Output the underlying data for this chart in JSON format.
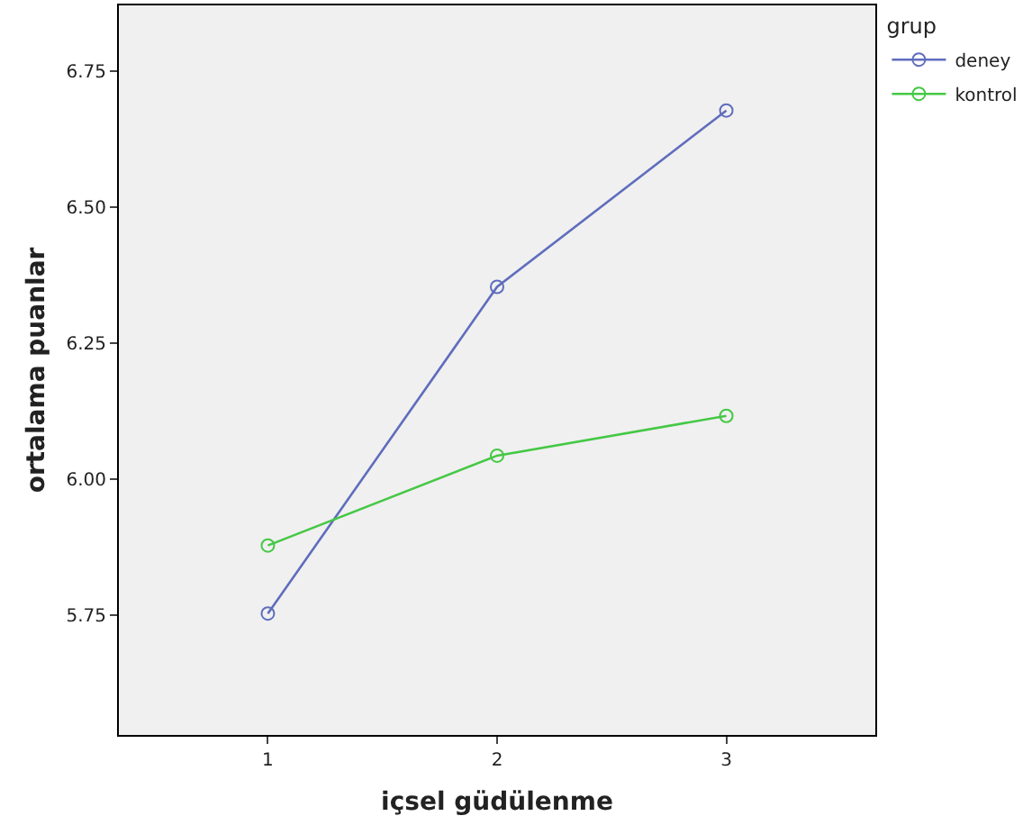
{
  "chart_data": {
    "type": "line",
    "xlabel": "içsel güdülenme",
    "ylabel": "ortalama puanlar",
    "legend_title": "grup",
    "x": [
      1,
      2,
      3
    ],
    "xlim": [
      0.35,
      3.65
    ],
    "xticks": [
      1,
      2,
      3
    ],
    "ylim": [
      5.53,
      6.87
    ],
    "yticks": [
      {
        "value": 5.75,
        "label": "5.75"
      },
      {
        "value": 6,
        "label": "6.00"
      },
      {
        "value": 6.25,
        "label": "6.25"
      },
      {
        "value": 6.5,
        "label": "6.50"
      },
      {
        "value": 6.75,
        "label": "6.75"
      }
    ],
    "grid": false,
    "legend": "top right",
    "marker": "circle",
    "line_style": "solid",
    "series": [
      {
        "name": "deney",
        "color": "#5f6dbd",
        "values": [
          5.753,
          6.353,
          6.677
        ]
      },
      {
        "name": "kontrol",
        "color": "#45c845",
        "values": [
          5.878,
          6.043,
          6.116
        ]
      }
    ]
  }
}
